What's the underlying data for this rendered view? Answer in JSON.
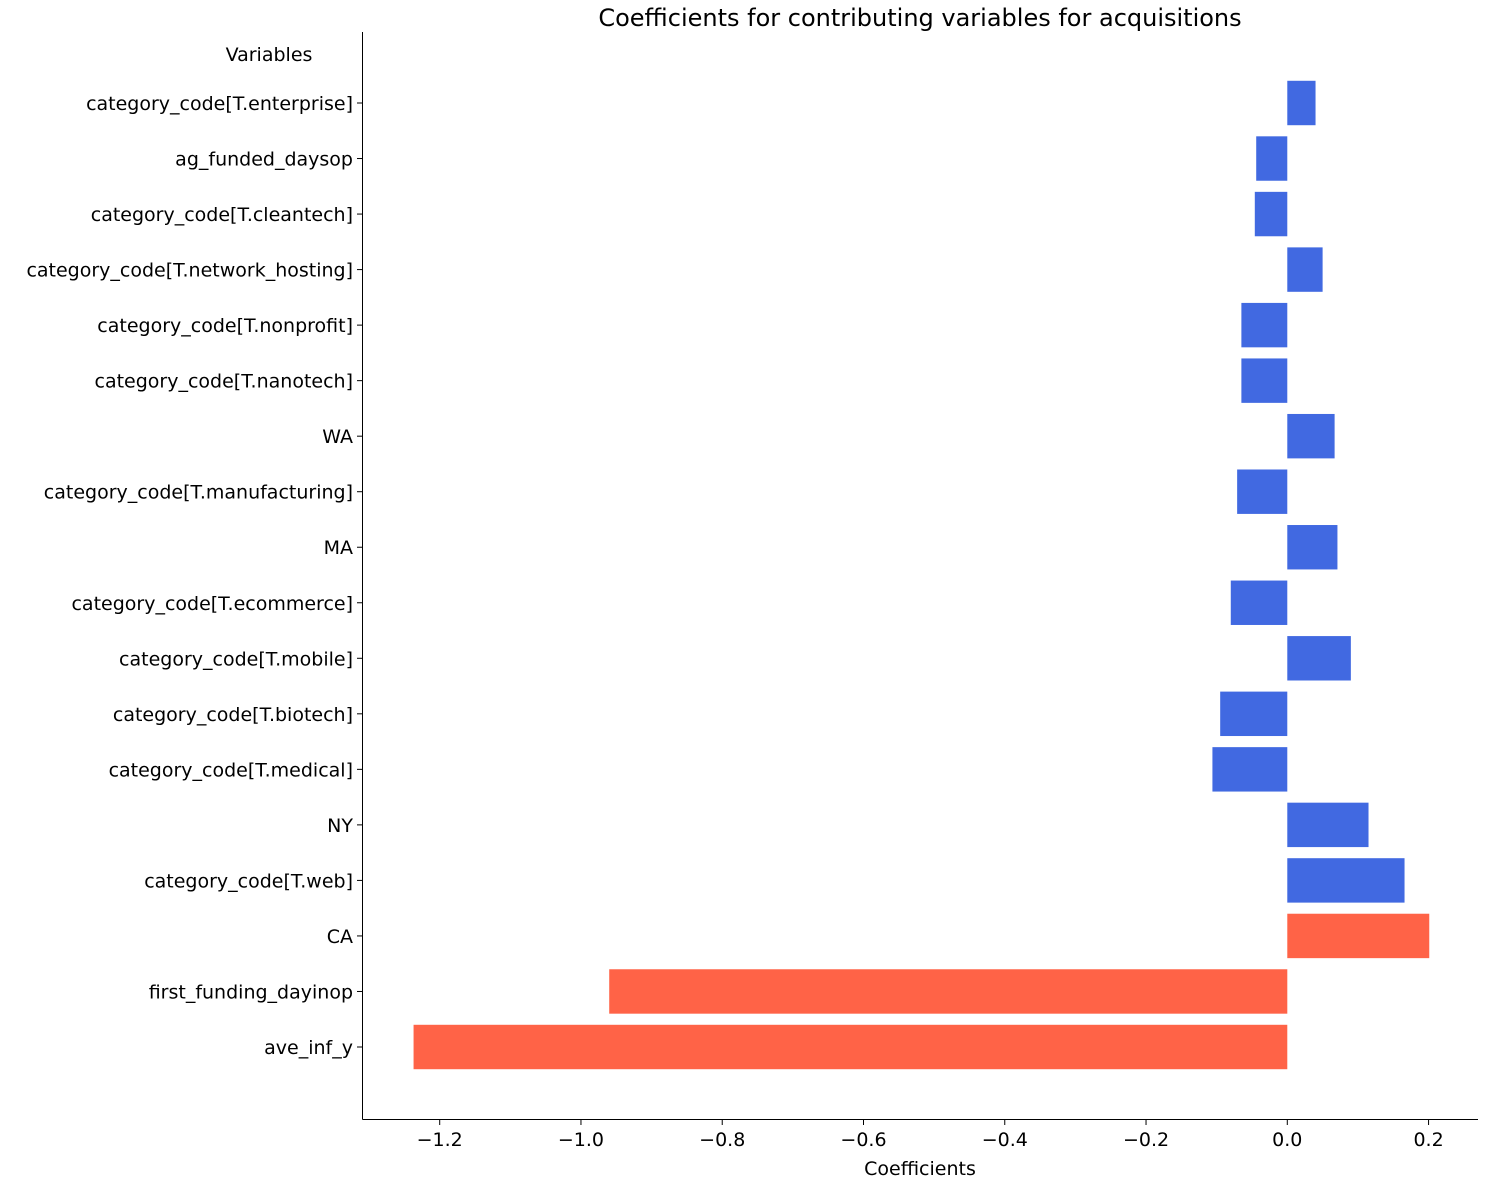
{
  "chart_data": {
    "type": "bar",
    "orientation": "horizontal",
    "title": "Coefficients for contributing variables for acquisitions",
    "xlabel": "Coefficients",
    "ylabel": "Variables",
    "xlim": [
      -1.31,
      0.27
    ],
    "xticks": [
      -1.2,
      -1.0,
      -0.8,
      -0.6,
      -0.4,
      -0.2,
      0.0,
      0.2
    ],
    "xtick_labels": [
      "−1.2",
      "−1.0",
      "−0.8",
      "−0.6",
      "−0.4",
      "−0.2",
      "0.0",
      "0.2"
    ],
    "grid": false,
    "legend": "none",
    "colors": {
      "highlight": "#ff6347",
      "normal": "#4169e1"
    },
    "categories": [
      "category_code[T.enterprise]",
      "ag_funded_daysop",
      "category_code[T.cleantech]",
      "category_code[T.network_hosting]",
      "category_code[T.nonprofit]",
      "category_code[T.nanotech]",
      "WA",
      "category_code[T.manufacturing]",
      "MA",
      "category_code[T.ecommerce]",
      "category_code[T.mobile]",
      "category_code[T.biotech]",
      "category_code[T.medical]",
      "NY",
      "category_code[T.web]",
      "CA",
      "first_funding_dayinop",
      "ave_inf_y"
    ],
    "values": [
      0.04,
      -0.044,
      -0.046,
      0.05,
      -0.065,
      -0.065,
      0.067,
      -0.071,
      0.071,
      -0.08,
      0.09,
      -0.095,
      -0.106,
      0.115,
      0.166,
      0.201,
      -0.96,
      -1.237
    ],
    "highlighted": [
      false,
      false,
      false,
      false,
      false,
      false,
      false,
      false,
      false,
      false,
      false,
      false,
      false,
      false,
      false,
      true,
      true,
      true
    ]
  }
}
